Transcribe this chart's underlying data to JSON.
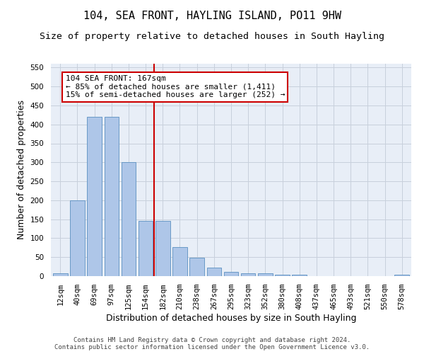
{
  "title": "104, SEA FRONT, HAYLING ISLAND, PO11 9HW",
  "subtitle": "Size of property relative to detached houses in South Hayling",
  "xlabel": "Distribution of detached houses by size in South Hayling",
  "ylabel": "Number of detached properties",
  "footer_line1": "Contains HM Land Registry data © Crown copyright and database right 2024.",
  "footer_line2": "Contains public sector information licensed under the Open Government Licence v3.0.",
  "bar_labels": [
    "12sqm",
    "40sqm",
    "69sqm",
    "97sqm",
    "125sqm",
    "154sqm",
    "182sqm",
    "210sqm",
    "238sqm",
    "267sqm",
    "295sqm",
    "323sqm",
    "352sqm",
    "380sqm",
    "408sqm",
    "437sqm",
    "465sqm",
    "493sqm",
    "521sqm",
    "550sqm",
    "578sqm"
  ],
  "bar_values": [
    8,
    200,
    420,
    420,
    300,
    145,
    145,
    77,
    48,
    23,
    12,
    8,
    7,
    3,
    3,
    0,
    0,
    0,
    0,
    0,
    3
  ],
  "bar_color": "#aec6e8",
  "bar_edge_color": "#5a8fc0",
  "vline_x": 5.5,
  "vline_color": "#cc0000",
  "annotation_text_line1": "104 SEA FRONT: 167sqm",
  "annotation_text_line2": "← 85% of detached houses are smaller (1,411)",
  "annotation_text_line3": "15% of semi-detached houses are larger (252) →",
  "annotation_box_color": "#ffffff",
  "annotation_box_edge_color": "#cc0000",
  "ylim": [
    0,
    560
  ],
  "yticks": [
    0,
    50,
    100,
    150,
    200,
    250,
    300,
    350,
    400,
    450,
    500,
    550
  ],
  "grid_color": "#c8d0dc",
  "bg_color": "#e8eef7",
  "fig_bg_color": "#ffffff",
  "title_fontsize": 11,
  "subtitle_fontsize": 9.5,
  "axis_label_fontsize": 9,
  "tick_fontsize": 7.5,
  "annotation_fontsize": 8,
  "footer_fontsize": 6.5
}
